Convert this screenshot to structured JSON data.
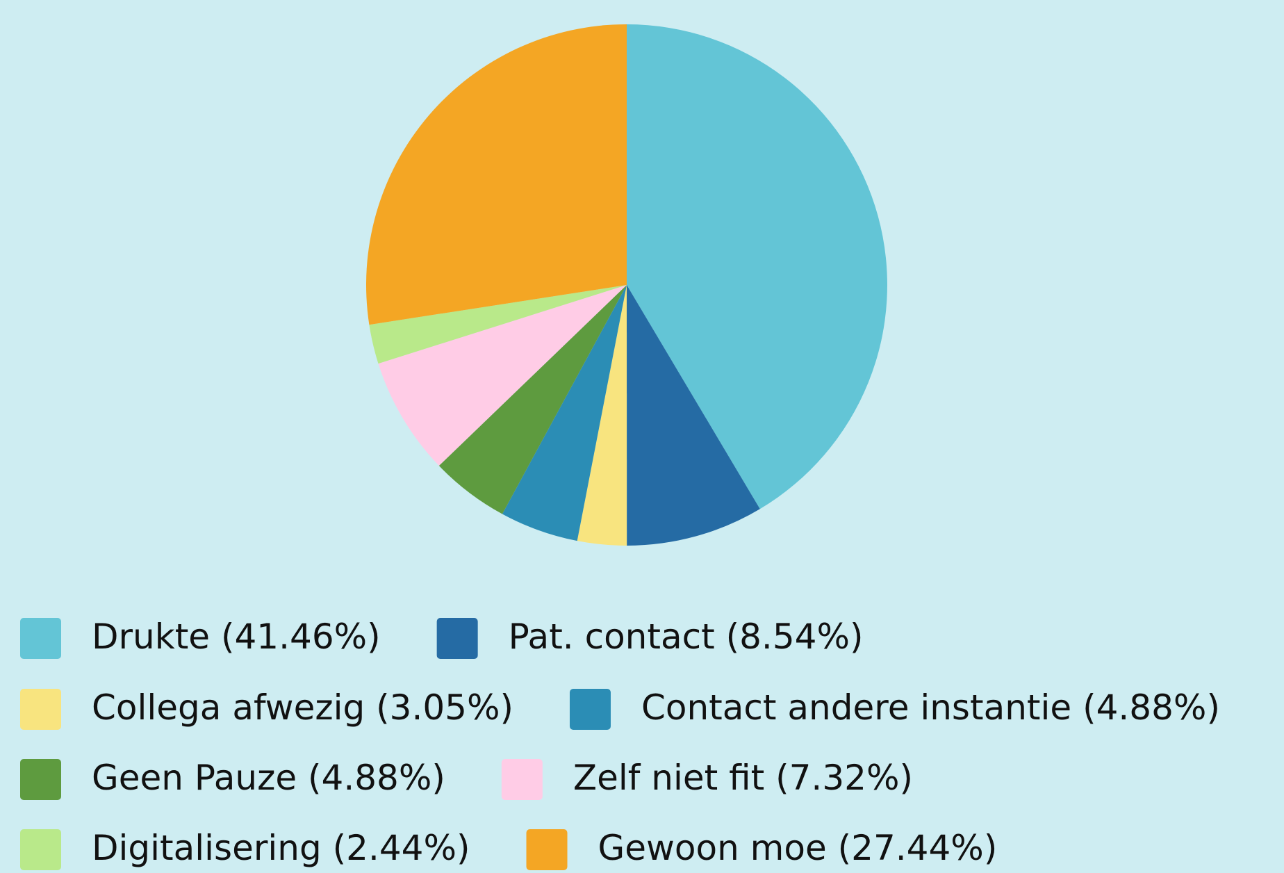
{
  "chart_data": {
    "type": "pie",
    "categories": [
      "Drukte",
      "Pat. contact",
      "Collega afwezig",
      "Contact andere instantie",
      "Geen Pauze",
      "Zelf niet fit",
      "Digitalisering",
      "Gewoon moe"
    ],
    "values": [
      41.46,
      8.54,
      3.05,
      4.88,
      4.88,
      7.32,
      2.44,
      27.44
    ],
    "value_labels": [
      "(41.46%)",
      "(8.54%)",
      "(3.05%)",
      "(4.88%)",
      "(4.88%)",
      "(7.32%)",
      "(2.44%)",
      "(27.44%)"
    ],
    "colors": [
      "#63c5d6",
      "#256ba4",
      "#f8e47f",
      "#2b8db5",
      "#5e9b3f",
      "#ffcce6",
      "#b9e98a",
      "#f4a624"
    ],
    "legend": "bottom"
  }
}
